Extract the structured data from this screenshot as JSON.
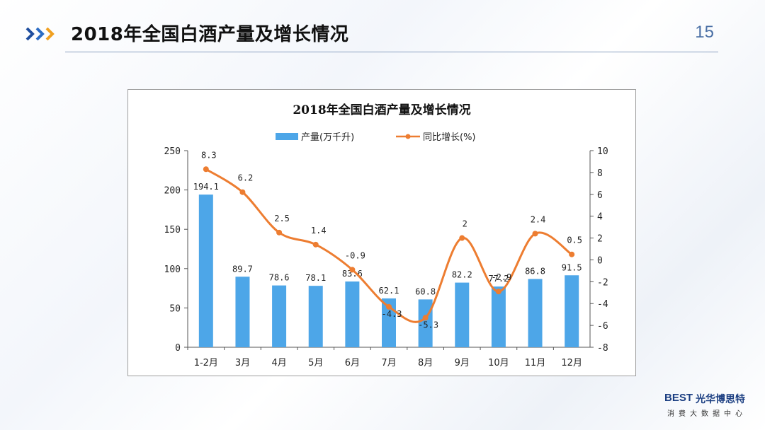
{
  "slide": {
    "title": "2018年全国白酒产量及增长情况",
    "page_number": "15",
    "accent_color": "#1f4e9e"
  },
  "brand": {
    "logo": "BEST",
    "name": "光华博思特",
    "tagline": "消费大数据中心"
  },
  "chart_data": {
    "type": "bar+line",
    "title": "2018年全国白酒产量及增长情况",
    "categories": [
      "1-2月",
      "3月",
      "4月",
      "5月",
      "6月",
      "7月",
      "8月",
      "9月",
      "10月",
      "11月",
      "12月"
    ],
    "series": [
      {
        "name": "产量(万千升)",
        "type": "bar",
        "axis": "left",
        "color": "#4da6e8",
        "values": [
          194.1,
          89.7,
          78.6,
          78.1,
          83.6,
          62.1,
          60.8,
          82.2,
          77.2,
          86.8,
          91.5
        ],
        "labels": [
          "194.1",
          "89.7",
          "78.6",
          "78.1",
          "83.6",
          "62.1",
          "60.8",
          "82.2",
          "77.2",
          "86.8",
          "91.5"
        ]
      },
      {
        "name": "同比增长(%)",
        "type": "line",
        "axis": "right",
        "color": "#ed7d31",
        "smooth": true,
        "values": [
          8.3,
          6.2,
          2.5,
          1.4,
          -0.9,
          -4.3,
          -5.3,
          2,
          -2.9,
          2.4,
          0.5
        ],
        "labels": [
          "8.3",
          "6.2",
          "2.5",
          "1.4",
          "-0.9",
          "-4.3",
          "-5.3",
          "2",
          "-2.9",
          "2.4",
          "0.5"
        ]
      }
    ],
    "left_axis": {
      "ylim": [
        0,
        250
      ],
      "ticks": [
        0,
        50,
        100,
        150,
        200,
        250
      ]
    },
    "right_axis": {
      "ylim": [
        -8,
        10
      ],
      "ticks": [
        -8,
        -6,
        -4,
        -2,
        0,
        2,
        4,
        6,
        8,
        10
      ]
    },
    "legend_position": "top-center",
    "grid": false
  }
}
